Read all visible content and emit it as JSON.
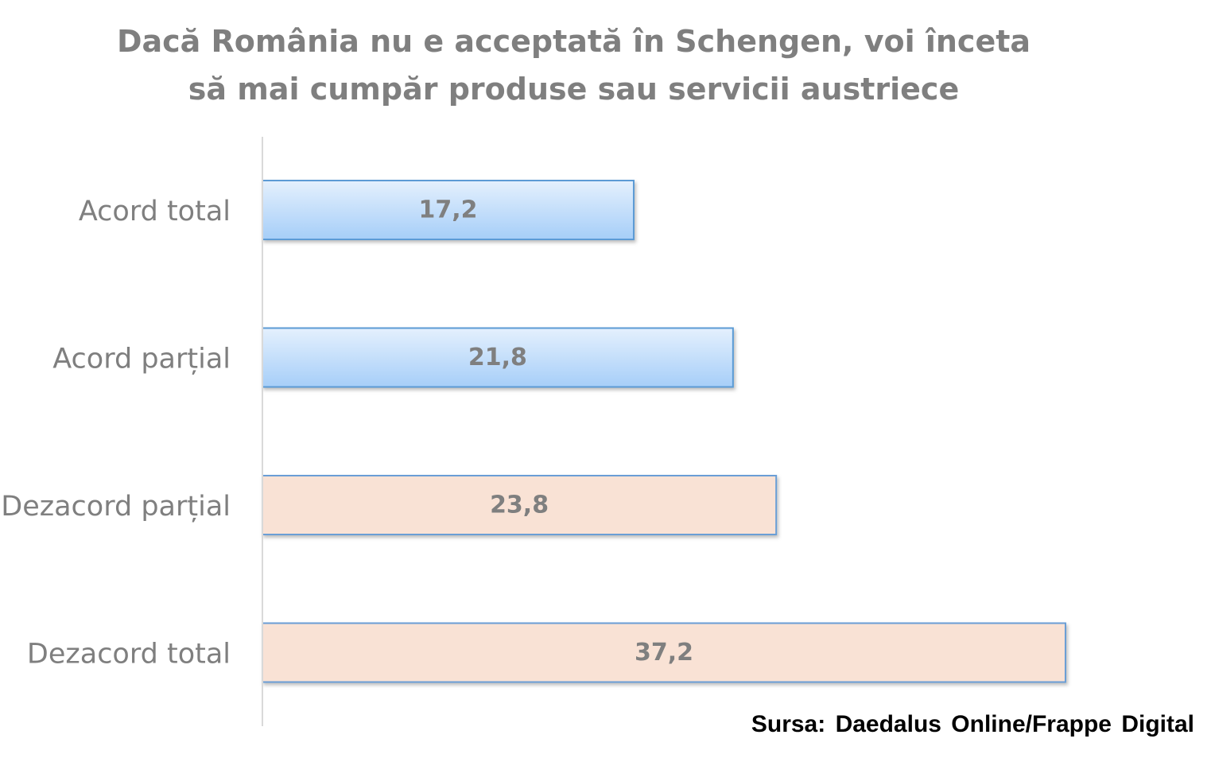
{
  "chart_data": {
    "type": "bar",
    "orientation": "horizontal",
    "title": "Dacă România nu e acceptată în Schengen, voi înceta să mai cumpăr produse sau servicii austriece",
    "title_lines": [
      "Dacă România nu e acceptată în Schengen, voi înceta",
      "să mai cumpăr produse sau servicii austriece"
    ],
    "categories": [
      "Acord total",
      "Acord parțial",
      "Dezacord parțial",
      "Dezacord total"
    ],
    "values": [
      17.2,
      21.8,
      23.8,
      37.2
    ],
    "value_labels": [
      "17,2",
      "21,8",
      "23,8",
      "37,2"
    ],
    "bar_colors": [
      "blue-gradient",
      "blue-gradient",
      "peach",
      "peach"
    ],
    "colors": {
      "blue_top": "#e4f0fd",
      "blue_bottom": "#a6cef8",
      "blue_border": "#5b9bd5",
      "peach_fill": "#f9e2d5",
      "peach_border": "#6a9ed6",
      "axis_line": "#d9d9d9",
      "text_gray": "#7f7f7f"
    },
    "xlim": [
      0,
      40
    ],
    "xlabel": "",
    "ylabel": "",
    "grid": false,
    "legend": "none",
    "value_axis_visible": false
  },
  "source": "Sursa: Daedalus Online/Frappe Digital"
}
